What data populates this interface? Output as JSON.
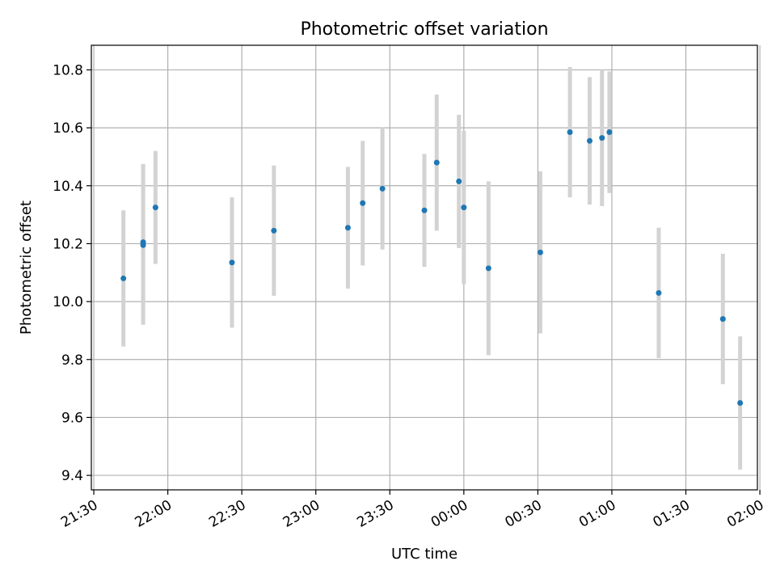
{
  "chart_data": {
    "type": "scatter",
    "title": "Photometric offset variation",
    "xlabel": "UTC time",
    "ylabel": "Photometric offset",
    "grid": true,
    "x_tick_labels": [
      "21:30",
      "22:00",
      "22:30",
      "23:00",
      "23:30",
      "00:00",
      "00:30",
      "01:00",
      "01:30",
      "02:00"
    ],
    "y_ticks": [
      9.4,
      9.6,
      9.8,
      10.0,
      10.2,
      10.4,
      10.6,
      10.8
    ],
    "xlim_minutes_from_2130": [
      -1,
      269
    ],
    "ylim": [
      9.35,
      10.885
    ],
    "colors": {
      "point": "#1f77b4",
      "errorbar": "#d3d3d3",
      "grid": "#b0b0b0"
    },
    "points": [
      {
        "t": "21:42",
        "y": 10.08,
        "err": 0.235
      },
      {
        "t": "21:50",
        "y": 10.195,
        "err": 0.275
      },
      {
        "t": "21:50",
        "y": 10.205,
        "err": 0.27
      },
      {
        "t": "21:55",
        "y": 10.325,
        "err": 0.195
      },
      {
        "t": "22:26",
        "y": 10.135,
        "err": 0.225
      },
      {
        "t": "22:43",
        "y": 10.245,
        "err": 0.225
      },
      {
        "t": "23:13",
        "y": 10.255,
        "err": 0.21
      },
      {
        "t": "23:19",
        "y": 10.34,
        "err": 0.215
      },
      {
        "t": "23:27",
        "y": 10.39,
        "err": 0.21
      },
      {
        "t": "23:44",
        "y": 10.315,
        "err": 0.195
      },
      {
        "t": "23:49",
        "y": 10.48,
        "err": 0.235
      },
      {
        "t": "23:58",
        "y": 10.415,
        "err": 0.23
      },
      {
        "t": "00:00",
        "y": 10.325,
        "err": 0.265
      },
      {
        "t": "00:10",
        "y": 10.115,
        "err": 0.3
      },
      {
        "t": "00:31",
        "y": 10.17,
        "err": 0.28
      },
      {
        "t": "00:43",
        "y": 10.585,
        "err": 0.225
      },
      {
        "t": "00:51",
        "y": 10.555,
        "err": 0.22
      },
      {
        "t": "00:56",
        "y": 10.565,
        "err": 0.235
      },
      {
        "t": "00:59",
        "y": 10.585,
        "err": 0.21
      },
      {
        "t": "01:19",
        "y": 10.03,
        "err": 0.225
      },
      {
        "t": "01:45",
        "y": 9.94,
        "err": 0.225
      },
      {
        "t": "01:52",
        "y": 9.65,
        "err": 0.23
      }
    ]
  }
}
